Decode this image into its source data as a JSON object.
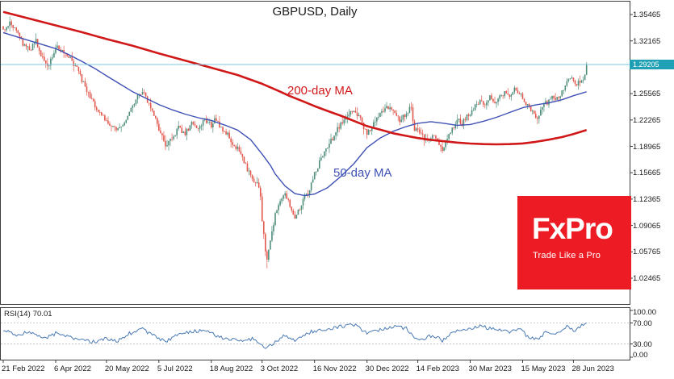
{
  "chart_data": {
    "type": "candlestick",
    "title": "GBPUSD, Daily",
    "symbol": "GBPUSD",
    "timeframe": "Daily",
    "current_price": {
      "value": "1.29205",
      "numeric": 1.29205
    },
    "candle_colors": {
      "up": "#4e8d7c",
      "down": "#e2574c"
    },
    "price_line_color": "#7ec8e3",
    "price_tag_bg": "#1fa0b4",
    "y_axis": {
      "side": "right",
      "ticks": [
        {
          "label": "1.35465",
          "value": 1.35465
        },
        {
          "label": "1.32165",
          "value": 1.32165
        },
        {
          "label": "1.28865",
          "value": 1.28865
        },
        {
          "label": "1.25565",
          "value": 1.25565
        },
        {
          "label": "1.22265",
          "value": 1.22265
        },
        {
          "label": "1.18965",
          "value": 1.18965
        },
        {
          "label": "1.15665",
          "value": 1.15665
        },
        {
          "label": "1.12365",
          "value": 1.12365
        },
        {
          "label": "1.09065",
          "value": 1.09065
        },
        {
          "label": "1.05765",
          "value": 1.05765
        },
        {
          "label": "1.02465",
          "value": 1.02465
        }
      ]
    },
    "x_axis": {
      "ticks": [
        {
          "label": "21 Feb 2022",
          "index": 0
        },
        {
          "label": "6 Apr 2022",
          "index": 32
        },
        {
          "label": "20 May 2022",
          "index": 63
        },
        {
          "label": "5 Jul 2022",
          "index": 95
        },
        {
          "label": "18 Aug 2022",
          "index": 127
        },
        {
          "label": "3 Oct 2022",
          "index": 158
        },
        {
          "label": "16 Nov 2022",
          "index": 190
        },
        {
          "label": "30 Dec 2022",
          "index": 222
        },
        {
          "label": "14 Feb 2023",
          "index": 253
        },
        {
          "label": "30 Mar 2023",
          "index": 285
        },
        {
          "label": "15 May 2023",
          "index": 317
        },
        {
          "label": "28 Jun 2023",
          "index": 348
        }
      ]
    },
    "series": {
      "name": "GBPUSD daily candles",
      "count": 357,
      "spike_low": {
        "index": 161,
        "price": 1.037
      },
      "close_anchors": [
        [
          0,
          1.336
        ],
        [
          4,
          1.345
        ],
        [
          8,
          1.334
        ],
        [
          12,
          1.318
        ],
        [
          16,
          1.31
        ],
        [
          20,
          1.321
        ],
        [
          24,
          1.3
        ],
        [
          27,
          1.289
        ],
        [
          30,
          1.304
        ],
        [
          33,
          1.316
        ],
        [
          37,
          1.307
        ],
        [
          41,
          1.299
        ],
        [
          45,
          1.286
        ],
        [
          49,
          1.268
        ],
        [
          53,
          1.251
        ],
        [
          57,
          1.237
        ],
        [
          61,
          1.226
        ],
        [
          65,
          1.218
        ],
        [
          69,
          1.211
        ],
        [
          73,
          1.213
        ],
        [
          77,
          1.231
        ],
        [
          81,
          1.25
        ],
        [
          85,
          1.259
        ],
        [
          88,
          1.247
        ],
        [
          92,
          1.228
        ],
        [
          95,
          1.212
        ],
        [
          99,
          1.191
        ],
        [
          103,
          1.199
        ],
        [
          107,
          1.213
        ],
        [
          111,
          1.205
        ],
        [
          115,
          1.219
        ],
        [
          119,
          1.214
        ],
        [
          123,
          1.223
        ],
        [
          127,
          1.215
        ],
        [
          129,
          1.227
        ],
        [
          133,
          1.213
        ],
        [
          137,
          1.204
        ],
        [
          141,
          1.191
        ],
        [
          145,
          1.181
        ],
        [
          149,
          1.161
        ],
        [
          152,
          1.149
        ],
        [
          155,
          1.146
        ],
        [
          157,
          1.13
        ],
        [
          158,
          1.098
        ],
        [
          160,
          1.06
        ],
        [
          161,
          1.049
        ],
        [
          163,
          1.073
        ],
        [
          166,
          1.103
        ],
        [
          169,
          1.122
        ],
        [
          172,
          1.133
        ],
        [
          175,
          1.114
        ],
        [
          178,
          1.101
        ],
        [
          181,
          1.111
        ],
        [
          184,
          1.126
        ],
        [
          187,
          1.136
        ],
        [
          190,
          1.155
        ],
        [
          194,
          1.174
        ],
        [
          198,
          1.189
        ],
        [
          202,
          1.204
        ],
        [
          206,
          1.217
        ],
        [
          210,
          1.227
        ],
        [
          214,
          1.236
        ],
        [
          218,
          1.223
        ],
        [
          222,
          1.206
        ],
        [
          226,
          1.217
        ],
        [
          230,
          1.231
        ],
        [
          234,
          1.241
        ],
        [
          238,
          1.233
        ],
        [
          242,
          1.223
        ],
        [
          246,
          1.231
        ],
        [
          249,
          1.24
        ],
        [
          251,
          1.207
        ],
        [
          253,
          1.212
        ],
        [
          256,
          1.203
        ],
        [
          259,
          1.194
        ],
        [
          262,
          1.203
        ],
        [
          265,
          1.197
        ],
        [
          268,
          1.185
        ],
        [
          271,
          1.198
        ],
        [
          274,
          1.212
        ],
        [
          277,
          1.223
        ],
        [
          280,
          1.218
        ],
        [
          283,
          1.229
        ],
        [
          285,
          1.232
        ],
        [
          288,
          1.241
        ],
        [
          291,
          1.247
        ],
        [
          294,
          1.242
        ],
        [
          297,
          1.251
        ],
        [
          300,
          1.244
        ],
        [
          303,
          1.251
        ],
        [
          306,
          1.257
        ],
        [
          309,
          1.251
        ],
        [
          312,
          1.263
        ],
        [
          315,
          1.257
        ],
        [
          317,
          1.249
        ],
        [
          320,
          1.241
        ],
        [
          323,
          1.232
        ],
        [
          326,
          1.226
        ],
        [
          329,
          1.239
        ],
        [
          332,
          1.245
        ],
        [
          335,
          1.253
        ],
        [
          338,
          1.249
        ],
        [
          341,
          1.257
        ],
        [
          344,
          1.269
        ],
        [
          346,
          1.275
        ],
        [
          348,
          1.272
        ],
        [
          350,
          1.266
        ],
        [
          352,
          1.271
        ],
        [
          355,
          1.278
        ],
        [
          356,
          1.29205
        ]
      ]
    },
    "overlays": [
      {
        "name": "ma-200",
        "label": "200-day MA",
        "period": 200,
        "color": "#d01818",
        "width": 2.6,
        "points": [
          [
            0,
            1.358
          ],
          [
            16,
            1.3495
          ],
          [
            32,
            1.341
          ],
          [
            48,
            1.3325
          ],
          [
            63,
            1.324
          ],
          [
            79,
            1.3155
          ],
          [
            95,
            1.306
          ],
          [
            111,
            1.297
          ],
          [
            127,
            1.288
          ],
          [
            143,
            1.279
          ],
          [
            158,
            1.268
          ],
          [
            167,
            1.26
          ],
          [
            175,
            1.2525
          ],
          [
            183,
            1.246
          ],
          [
            190,
            1.24
          ],
          [
            198,
            1.234
          ],
          [
            206,
            1.228
          ],
          [
            214,
            1.2215
          ],
          [
            222,
            1.215
          ],
          [
            230,
            1.2105
          ],
          [
            238,
            1.206
          ],
          [
            246,
            1.2028
          ],
          [
            253,
            1.2
          ],
          [
            261,
            1.1978
          ],
          [
            269,
            1.196
          ],
          [
            277,
            1.1944
          ],
          [
            285,
            1.1932
          ],
          [
            293,
            1.1925
          ],
          [
            301,
            1.1922
          ],
          [
            309,
            1.1925
          ],
          [
            317,
            1.1933
          ],
          [
            325,
            1.1953
          ],
          [
            333,
            1.198
          ],
          [
            341,
            1.2013
          ],
          [
            348,
            1.205
          ],
          [
            356,
            1.21
          ]
        ]
      },
      {
        "name": "ma-50",
        "label": "50-day MA",
        "period": 50,
        "color": "#3f51b5",
        "width": 1.4,
        "points": [
          [
            0,
            1.332
          ],
          [
            8,
            1.327
          ],
          [
            16,
            1.322
          ],
          [
            24,
            1.317
          ],
          [
            32,
            1.312
          ],
          [
            40,
            1.3045
          ],
          [
            48,
            1.296
          ],
          [
            56,
            1.287
          ],
          [
            63,
            1.278
          ],
          [
            71,
            1.268
          ],
          [
            79,
            1.258
          ],
          [
            87,
            1.25
          ],
          [
            95,
            1.242
          ],
          [
            103,
            1.2355
          ],
          [
            111,
            1.23
          ],
          [
            119,
            1.2255
          ],
          [
            127,
            1.222
          ],
          [
            135,
            1.2165
          ],
          [
            143,
            1.21
          ],
          [
            151,
            1.198
          ],
          [
            158,
            1.18
          ],
          [
            163,
            1.166
          ],
          [
            166,
            1.155
          ],
          [
            172,
            1.14
          ],
          [
            178,
            1.1305
          ],
          [
            184,
            1.128
          ],
          [
            190,
            1.13
          ],
          [
            198,
            1.138
          ],
          [
            206,
            1.152
          ],
          [
            214,
            1.168
          ],
          [
            222,
            1.188
          ],
          [
            230,
            1.2
          ],
          [
            238,
            1.2085
          ],
          [
            246,
            1.2145
          ],
          [
            253,
            1.2185
          ],
          [
            261,
            1.2205
          ],
          [
            269,
            1.2185
          ],
          [
            277,
            1.216
          ],
          [
            285,
            1.217
          ],
          [
            293,
            1.221
          ],
          [
            301,
            1.226
          ],
          [
            309,
            1.232
          ],
          [
            317,
            1.238
          ],
          [
            325,
            1.2415
          ],
          [
            333,
            1.244
          ],
          [
            341,
            1.248
          ],
          [
            348,
            1.253
          ],
          [
            356,
            1.258
          ]
        ]
      }
    ],
    "indicator": {
      "type": "RSI",
      "name": "RSI(14)",
      "value": "70.01",
      "numeric": 70.01,
      "range": [
        0,
        100
      ],
      "color": "#4a7ab5",
      "levels": [
        {
          "label": "100.00",
          "value": 100
        },
        {
          "label": "70.00",
          "value": 70
        },
        {
          "label": "30.00",
          "value": 30
        },
        {
          "label": "0.00",
          "value": 0
        }
      ],
      "dashed_levels": [
        70,
        30
      ],
      "points": [
        [
          0,
          55
        ],
        [
          8,
          48
        ],
        [
          16,
          52
        ],
        [
          24,
          40
        ],
        [
          32,
          50
        ],
        [
          40,
          43
        ],
        [
          48,
          37
        ],
        [
          56,
          34
        ],
        [
          63,
          41
        ],
        [
          70,
          35
        ],
        [
          77,
          50
        ],
        [
          85,
          58
        ],
        [
          92,
          45
        ],
        [
          99,
          35
        ],
        [
          107,
          49
        ],
        [
          115,
          53
        ],
        [
          123,
          56
        ],
        [
          131,
          44
        ],
        [
          139,
          38
        ],
        [
          147,
          33
        ],
        [
          152,
          40
        ],
        [
          157,
          30
        ],
        [
          161,
          21
        ],
        [
          166,
          34
        ],
        [
          172,
          46
        ],
        [
          178,
          36
        ],
        [
          184,
          49
        ],
        [
          190,
          55
        ],
        [
          198,
          59
        ],
        [
          206,
          63
        ],
        [
          214,
          67
        ],
        [
          222,
          50
        ],
        [
          230,
          58
        ],
        [
          238,
          63
        ],
        [
          246,
          59
        ],
        [
          251,
          42
        ],
        [
          256,
          39
        ],
        [
          262,
          47
        ],
        [
          268,
          37
        ],
        [
          274,
          52
        ],
        [
          280,
          57
        ],
        [
          285,
          59
        ],
        [
          291,
          63
        ],
        [
          297,
          60
        ],
        [
          303,
          58
        ],
        [
          309,
          54
        ],
        [
          315,
          61
        ],
        [
          320,
          43
        ],
        [
          326,
          40
        ],
        [
          332,
          53
        ],
        [
          338,
          49
        ],
        [
          344,
          62
        ],
        [
          348,
          55
        ],
        [
          352,
          63
        ],
        [
          356,
          70.01
        ]
      ]
    }
  },
  "logo": {
    "brand": "FxPro",
    "tagline": "Trade Like a Pro",
    "bg": "#ed1c24",
    "text_color": "#ffffff"
  }
}
